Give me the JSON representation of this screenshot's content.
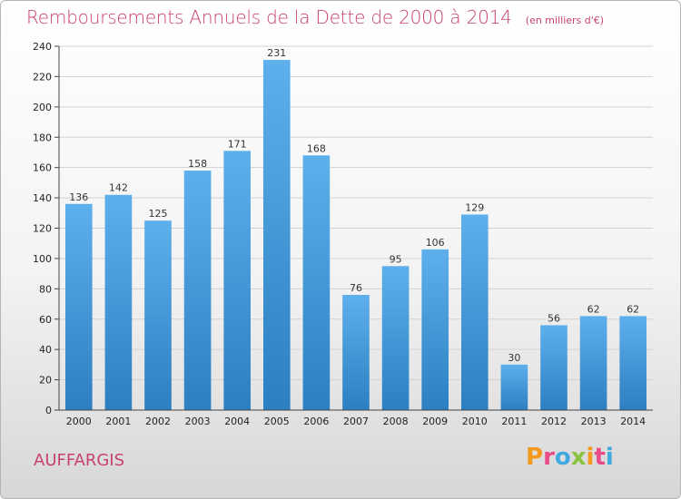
{
  "title": "Remboursements Annuels de la Dette de 2000 à 2014",
  "unit": "(en milliers d'€)",
  "commune": "AUFFARGIS",
  "logo": {
    "letters": [
      "P",
      "r",
      "o",
      "x",
      "i",
      "t",
      "i"
    ],
    "colors": [
      "#f39a1e",
      "#e84a8a",
      "#3fa9e0",
      "#8ac43f",
      "#f39a1e",
      "#e84a8a",
      "#3fa9e0"
    ]
  },
  "colors": {
    "bar_top": "#5eb0ec",
    "bar_bottom": "#2c7fc1",
    "accent": "#c8426e"
  },
  "chart_data": {
    "type": "bar",
    "title": "Remboursements Annuels de la Dette de 2000 à 2014",
    "xlabel": "",
    "ylabel": "",
    "categories": [
      "2000",
      "2001",
      "2002",
      "2003",
      "2004",
      "2005",
      "2006",
      "2007",
      "2008",
      "2009",
      "2010",
      "2011",
      "2012",
      "2013",
      "2014"
    ],
    "values": [
      136,
      142,
      125,
      158,
      171,
      231,
      168,
      76,
      95,
      106,
      129,
      30,
      56,
      62,
      62
    ],
    "ylim": [
      0,
      240
    ],
    "yticks": [
      0,
      20,
      40,
      60,
      80,
      100,
      120,
      140,
      160,
      180,
      200,
      220,
      240
    ],
    "grid": true
  }
}
